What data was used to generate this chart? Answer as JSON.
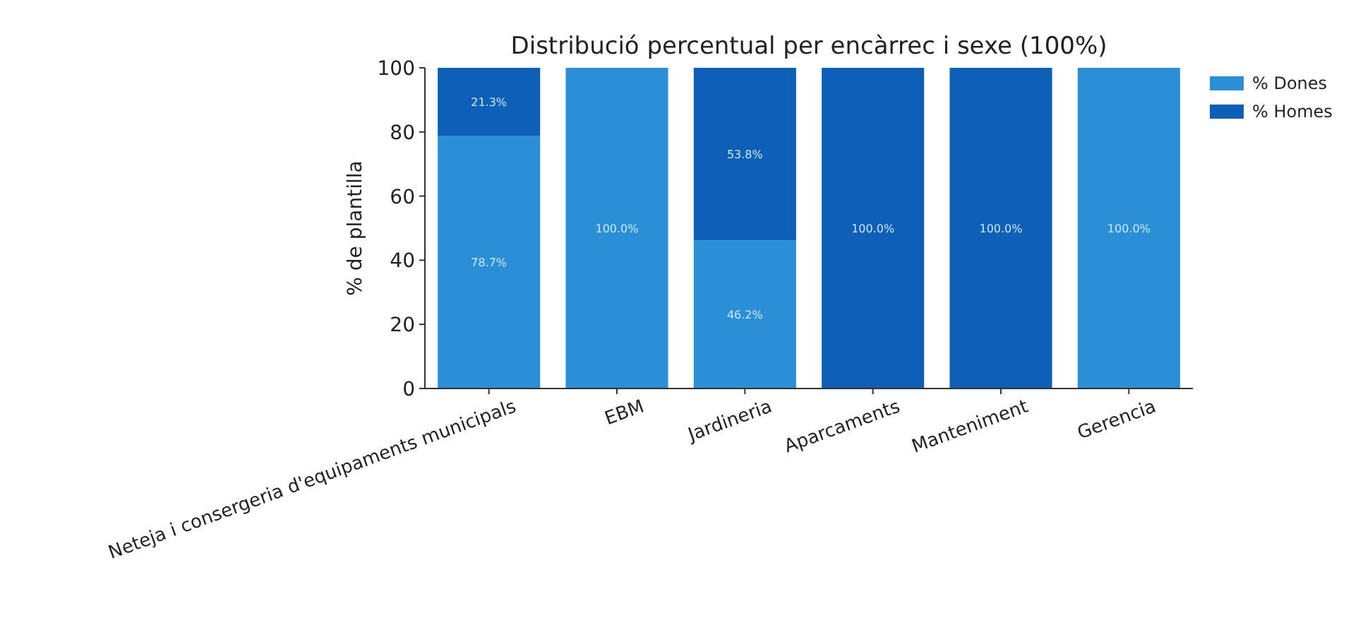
{
  "chart_data": {
    "type": "bar",
    "stacked": true,
    "title": "Distribució percentual per encàrrec i sexe (100%)",
    "ylabel": "% de plantilla",
    "categories": [
      "Neteja i consergeria d'equipaments municipals",
      "EBM",
      "Jardineria",
      "Aparcaments",
      "Manteniment",
      "Gerencia"
    ],
    "series": [
      {
        "name": "% Dones",
        "color": "#2a8fd6",
        "values": [
          78.7,
          100,
          46.2,
          0,
          0,
          100
        ],
        "value_labels": [
          "78.7%",
          "100.0%",
          "46.2%",
          null,
          null,
          "100.0%"
        ]
      },
      {
        "name": "% Homes",
        "color": "#0d5fb8",
        "values": [
          21.3,
          0,
          53.8,
          100,
          100,
          0
        ],
        "value_labels": [
          "21.3%",
          null,
          "53.8%",
          "100.0%",
          "100.0%",
          null
        ]
      }
    ],
    "ylim": [
      0,
      100
    ],
    "yticks": [
      0,
      20,
      40,
      60,
      80,
      100
    ],
    "grid": false,
    "legend": "right"
  }
}
